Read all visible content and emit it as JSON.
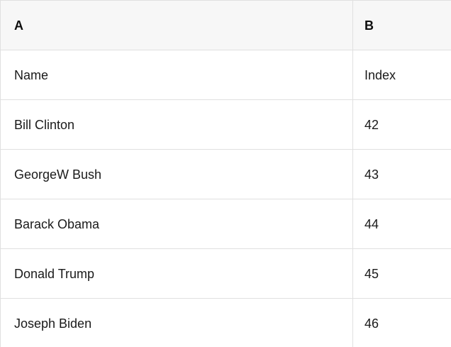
{
  "table": {
    "column_headers": [
      "A",
      "B"
    ],
    "rows": [
      {
        "a": "Name",
        "b": "Index"
      },
      {
        "a": "Bill Clinton",
        "b": "42"
      },
      {
        "a": "GeorgeW Bush",
        "b": "43"
      },
      {
        "a": "Barack Obama",
        "b": "44"
      },
      {
        "a": "Donald Trump",
        "b": "45"
      },
      {
        "a": "Joseph Biden",
        "b": "46"
      }
    ]
  },
  "colors": {
    "border": "#e0e0e0",
    "header_background": "#f7f7f7",
    "cell_background": "#ffffff",
    "text": "#1a1a1a",
    "header_text": "#0d0d0d"
  }
}
